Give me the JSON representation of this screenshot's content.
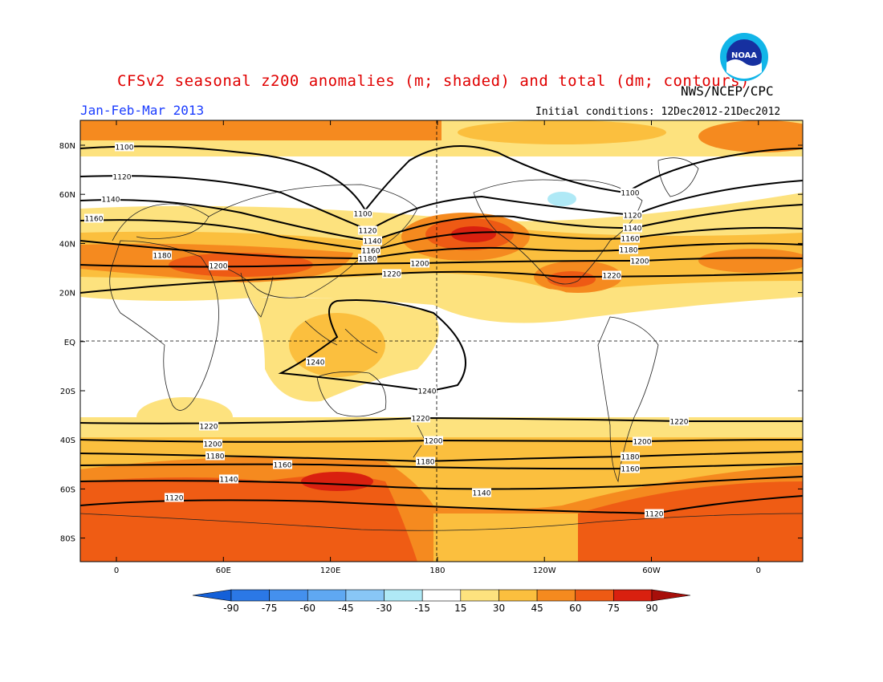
{
  "header": {
    "title": "CFSv2 seasonal z200 anomalies (m; shaded) and total (dm; contours)",
    "agency": "NWS/NCEP/CPC",
    "season": "Jan-Feb-Mar 2013",
    "initial_conditions": "Initial conditions: 12Dec2012-21Dec2012",
    "logo_text": "NOAA"
  },
  "axes": {
    "lat_labels": [
      "80N",
      "60N",
      "40N",
      "20N",
      "EQ",
      "20S",
      "40S",
      "60S",
      "80S"
    ],
    "lon_labels": [
      "0",
      "60E",
      "120E",
      "180",
      "120W",
      "60W",
      "0"
    ]
  },
  "colors": {
    "c15_30": "#fde27e",
    "c30_45": "#fbbf3e",
    "c45_60": "#f58a1f",
    "c60_75": "#ee5a14",
    "c75_90": "#d9200f",
    "neg15_30": "#afe9f6",
    "contour": "#000000",
    "coast": "#222222"
  },
  "colorbar": {
    "labels": [
      "-90",
      "-75",
      "-60",
      "-45",
      "-30",
      "-15",
      "15",
      "30",
      "45",
      "60",
      "75",
      "90"
    ],
    "colors": [
      "#1460d8",
      "#2b78e6",
      "#4490ee",
      "#5fa8f2",
      "#88c6f6",
      "#afe9f6",
      "#ffffff",
      "#fde27e",
      "#fbbf3e",
      "#f58a1f",
      "#ee5a14",
      "#d9200f",
      "#a70f0a"
    ]
  },
  "contours": [
    {
      "label": "1100",
      "positions": [
        [
          155,
          183
        ],
        [
          452,
          266
        ],
        [
          785,
          240
        ]
      ]
    },
    {
      "label": "1120",
      "positions": [
        [
          152,
          220
        ],
        [
          458,
          287
        ],
        [
          788,
          268
        ],
        [
          217,
          620
        ],
        [
          815,
          640
        ]
      ]
    },
    {
      "label": "1140",
      "positions": [
        [
          138,
          248
        ],
        [
          464,
          300
        ],
        [
          788,
          284
        ],
        [
          285,
          597
        ],
        [
          600,
          614
        ]
      ]
    },
    {
      "label": "1160",
      "positions": [
        [
          117,
          272
        ],
        [
          462,
          312
        ],
        [
          785,
          297
        ],
        [
          352,
          579
        ],
        [
          785,
          584
        ]
      ]
    },
    {
      "label": "1180",
      "positions": [
        [
          202,
          318
        ],
        [
          458,
          322
        ],
        [
          783,
          311
        ],
        [
          268,
          568
        ],
        [
          530,
          575
        ],
        [
          785,
          569
        ]
      ]
    },
    {
      "label": "1200",
      "positions": [
        [
          272,
          331
        ],
        [
          523,
          328
        ],
        [
          797,
          325
        ],
        [
          265,
          553
        ],
        [
          540,
          549
        ],
        [
          800,
          550
        ]
      ]
    },
    {
      "label": "1220",
      "positions": [
        [
          488,
          341
        ],
        [
          762,
          343
        ],
        [
          260,
          531
        ],
        [
          524,
          521
        ],
        [
          846,
          525
        ]
      ]
    },
    {
      "label": "1240",
      "positions": [
        [
          393,
          451
        ],
        [
          532,
          487
        ]
      ]
    }
  ]
}
